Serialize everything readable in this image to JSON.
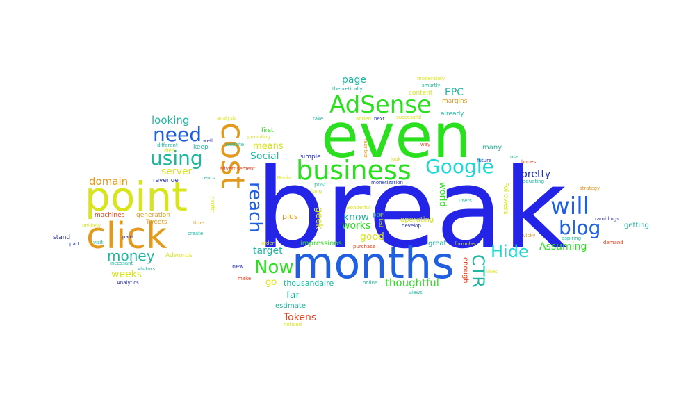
{
  "colors": {
    "blue": "#2424e6",
    "royal": "#1f5fe0",
    "green": "#2adf1e",
    "yellow": "#d8e41c",
    "orange": "#e29a1e",
    "cyan": "#1ed8d6",
    "teal": "#1fb6a0",
    "red": "#e0421e",
    "navy": "#2530b0"
  },
  "words": [
    {
      "id": "break",
      "text": "break",
      "color": "blue"
    },
    {
      "id": "even",
      "text": "even",
      "color": "green"
    },
    {
      "id": "months",
      "text": "months",
      "color": "royal"
    },
    {
      "id": "point",
      "text": "point",
      "color": "yellow"
    },
    {
      "id": "click",
      "text": "click",
      "color": "orange"
    },
    {
      "id": "cost",
      "text": "cost",
      "color": "orange"
    },
    {
      "id": "business",
      "text": "business",
      "color": "green"
    },
    {
      "id": "adsense",
      "text": "AdSense",
      "color": "green"
    },
    {
      "id": "google",
      "text": "Google",
      "color": "cyan"
    },
    {
      "id": "will",
      "text": "will",
      "color": "royal"
    },
    {
      "id": "blog",
      "text": "blog",
      "color": "royal"
    },
    {
      "id": "need",
      "text": "need",
      "color": "royal"
    },
    {
      "id": "using",
      "text": "using",
      "color": "teal"
    },
    {
      "id": "now",
      "text": "Now",
      "color": "green"
    },
    {
      "id": "reach",
      "text": "reach",
      "color": "royal"
    },
    {
      "id": "hide",
      "text": "Hide",
      "color": "cyan"
    },
    {
      "id": "ctr",
      "text": "CTR",
      "color": "teal"
    },
    {
      "id": "money",
      "text": "money",
      "color": "teal"
    },
    {
      "id": "looking",
      "text": "looking",
      "color": "teal"
    },
    {
      "id": "domain",
      "text": "domain",
      "color": "orange"
    },
    {
      "id": "weeks",
      "text": "weeks",
      "color": "yellow"
    },
    {
      "id": "server",
      "text": "server",
      "color": "yellow"
    },
    {
      "id": "page",
      "text": "page",
      "color": "teal"
    },
    {
      "id": "epc",
      "text": "EPC",
      "color": "teal"
    },
    {
      "id": "pretty",
      "text": "pretty",
      "color": "navy"
    },
    {
      "id": "assuming",
      "text": "Assuming",
      "color": "green"
    },
    {
      "id": "thoughtful",
      "text": "thoughtful",
      "color": "green"
    },
    {
      "id": "tokens",
      "text": "Tokens",
      "color": "red"
    },
    {
      "id": "good",
      "text": "good",
      "color": "yellow"
    },
    {
      "id": "know",
      "text": "know",
      "color": "teal"
    },
    {
      "id": "works",
      "text": "works",
      "color": "green"
    },
    {
      "id": "target",
      "text": "target",
      "color": "teal"
    },
    {
      "id": "social",
      "text": "Social",
      "color": "teal"
    },
    {
      "id": "means",
      "text": "means",
      "color": "yellow"
    },
    {
      "id": "far",
      "text": "far",
      "color": "teal"
    },
    {
      "id": "go",
      "text": "go",
      "color": "yellow"
    },
    {
      "id": "thousandaire",
      "text": "thousandaire",
      "color": "teal"
    },
    {
      "id": "estimate",
      "text": "estimate",
      "color": "teal"
    },
    {
      "id": "geek",
      "text": "geek",
      "color": "yellow"
    },
    {
      "id": "world",
      "text": "world",
      "color": "green"
    },
    {
      "id": "enough",
      "text": "enough",
      "color": "red"
    },
    {
      "id": "followers",
      "text": "Followers",
      "color": "yellow"
    },
    {
      "id": "many",
      "text": "many",
      "color": "teal"
    },
    {
      "id": "getting",
      "text": "getting",
      "color": "teal"
    },
    {
      "id": "great",
      "text": "great",
      "color": "teal"
    },
    {
      "id": "impressions",
      "text": "impressions",
      "color": "green"
    },
    {
      "id": "operating",
      "text": "operating",
      "color": "yellow"
    },
    {
      "id": "plus",
      "text": "plus",
      "color": "orange"
    },
    {
      "id": "per",
      "text": "per",
      "color": "teal"
    },
    {
      "id": "first",
      "text": "first",
      "color": "green"
    },
    {
      "id": "keep",
      "text": "keep",
      "color": "teal"
    },
    {
      "id": "simple",
      "text": "simple",
      "color": "navy"
    },
    {
      "id": "content",
      "text": "content",
      "color": "yellow"
    },
    {
      "id": "already",
      "text": "already",
      "color": "teal"
    },
    {
      "id": "margins",
      "text": "margins",
      "color": "orange"
    },
    {
      "id": "revenue",
      "text": "revenue",
      "color": "navy"
    },
    {
      "id": "tweets",
      "text": "Tweets",
      "color": "orange"
    },
    {
      "id": "machines",
      "text": "machines",
      "color": "red"
    },
    {
      "id": "generation",
      "text": "generation",
      "color": "orange"
    },
    {
      "id": "stand",
      "text": "stand",
      "color": "navy"
    },
    {
      "id": "profit",
      "text": "profit",
      "color": "yellow"
    },
    {
      "id": "adwords",
      "text": "Adwords",
      "color": "yellow"
    },
    {
      "id": "incessant",
      "text": "incessant",
      "color": "teal"
    },
    {
      "id": "visitors",
      "text": "visitors",
      "color": "teal"
    },
    {
      "id": "analytics",
      "text": "Analytics",
      "color": "navy"
    },
    {
      "id": "strategy",
      "text": "strategy",
      "color": "orange"
    },
    {
      "id": "ramblings",
      "text": "ramblings",
      "color": "navy"
    },
    {
      "id": "aspiring",
      "text": "aspiring",
      "color": "teal"
    },
    {
      "id": "demand",
      "text": "demand",
      "color": "red"
    },
    {
      "id": "vicky",
      "text": "Vicky",
      "color": "orange"
    },
    {
      "id": "equating",
      "text": "equating",
      "color": "teal"
    },
    {
      "id": "future",
      "text": "future",
      "color": "navy"
    },
    {
      "id": "use",
      "text": "use",
      "color": "teal"
    },
    {
      "id": "hopes",
      "text": "hopes",
      "color": "red"
    },
    {
      "id": "way",
      "text": "way",
      "color": "red"
    },
    {
      "id": "look",
      "text": "look",
      "color": "yellow"
    },
    {
      "id": "next",
      "text": "next",
      "color": "navy"
    },
    {
      "id": "successful",
      "text": "successful",
      "color": "yellow"
    },
    {
      "id": "added",
      "text": "added",
      "color": "yellow"
    },
    {
      "id": "take",
      "text": "take",
      "color": "teal"
    },
    {
      "id": "moderately",
      "text": "moderately",
      "color": "yellow"
    },
    {
      "id": "smartly",
      "text": "smartly",
      "color": "teal"
    },
    {
      "id": "theoretically",
      "text": "theoretically",
      "color": "teal"
    },
    {
      "id": "number",
      "text": "number",
      "color": "orange"
    },
    {
      "id": "analysis",
      "text": "analysis",
      "color": "yellow"
    },
    {
      "id": "website",
      "text": "website",
      "color": "teal"
    },
    {
      "id": "providing",
      "text": "providing",
      "color": "yellow"
    },
    {
      "id": "well",
      "text": "well",
      "color": "navy"
    },
    {
      "id": "different",
      "text": "different",
      "color": "teal"
    },
    {
      "id": "ified",
      "text": "ified",
      "color": "yellow"
    },
    {
      "id": "advertisement",
      "text": "advertisement",
      "color": "red"
    },
    {
      "id": "cents",
      "text": "cents",
      "color": "teal"
    },
    {
      "id": "media",
      "text": "Media",
      "color": "yellow"
    },
    {
      "id": "long",
      "text": "long",
      "color": "yellow"
    },
    {
      "id": "post",
      "text": "post",
      "color": "teal"
    },
    {
      "id": "monetization",
      "text": "monetization",
      "color": "navy"
    },
    {
      "id": "users",
      "text": "users",
      "color": "teal"
    },
    {
      "id": "wonderful",
      "text": "wonderful",
      "color": "yellow"
    },
    {
      "id": "linked",
      "text": "linked",
      "color": "yellow"
    },
    {
      "id": "develop",
      "text": "develop",
      "color": "navy"
    },
    {
      "id": "formulas",
      "text": "formulas",
      "color": "yellow"
    },
    {
      "id": "likes",
      "text": "likes",
      "color": "yellow"
    },
    {
      "id": "views",
      "text": "views",
      "color": "teal"
    },
    {
      "id": "online",
      "text": "online",
      "color": "teal"
    },
    {
      "id": "purchase",
      "text": "purchase",
      "color": "red"
    },
    {
      "id": "order",
      "text": "order",
      "color": "yellow"
    },
    {
      "id": "new",
      "text": "new",
      "color": "navy"
    },
    {
      "id": "make",
      "text": "make",
      "color": "red"
    },
    {
      "id": "noticed",
      "text": "noticed",
      "color": "yellow"
    },
    {
      "id": "create",
      "text": "create",
      "color": "teal"
    },
    {
      "id": "time",
      "text": "time",
      "color": "orange"
    },
    {
      "id": "paid",
      "text": "paid",
      "color": "navy"
    },
    {
      "id": "visit",
      "text": "visit",
      "color": "teal"
    },
    {
      "id": "part",
      "text": "part",
      "color": "navy"
    },
    {
      "id": "unlikely",
      "text": "unlikely",
      "color": "yellow"
    }
  ]
}
